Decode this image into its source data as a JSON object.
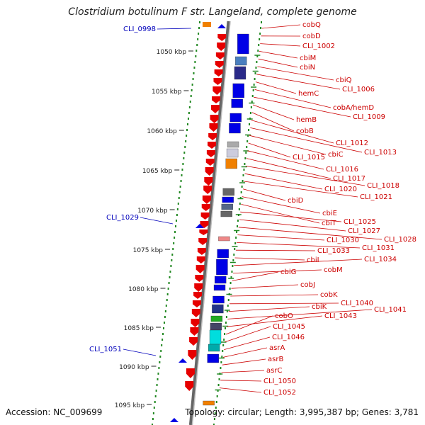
{
  "title": "Clostridium botulinum F str. Langeland, complete genome",
  "footer": {
    "accession": "Accession: NC_009699",
    "info": "Topology: circular; Length: 3,995,387 bp; Genes: 3,781"
  },
  "colors": {
    "forward_cds": "#e60000",
    "reverse_cds": "#0000e6",
    "backbone": "#888888",
    "ticks": "#228822",
    "label_forward": "#cc0000",
    "label_reverse": "#0000bb"
  },
  "ruler": [
    "1050 kbp",
    "1055 kbp",
    "1060 kbp",
    "1065 kbp",
    "1070 kbp",
    "1075 kbp",
    "1080 kbp",
    "1085 kbp",
    "1090 kbp",
    "1095 kbp"
  ],
  "left_labels": [
    "CLI_0998",
    "CLI_1029",
    "CLI_1051"
  ],
  "right_labels": [
    "cobQ",
    "cobD",
    "CLI_1002",
    "cbiM",
    "cbiN",
    "cbiQ",
    "CLI_1006",
    "hemC",
    "cobA/hemD",
    "CLI_1009",
    "hemB",
    "cobB",
    "CLI_1012",
    "CLI_1013",
    "cbiC",
    "CLI_1015",
    "CLI_1016",
    "CLI_1017",
    "CLI_1018",
    "CLI_1020",
    "CLI_1021",
    "cbiD",
    "cbiE",
    "cbiT",
    "CLI_1025",
    "CLI_1027",
    "CLI_1028",
    "CLI_1030",
    "CLI_1031",
    "CLI_1033",
    "cbiI",
    "CLI_1034",
    "cobM",
    "cbiG",
    "cobJ",
    "cobK",
    "CLI_1040",
    "cbiK",
    "CLI_1041",
    "CLI_1043",
    "cobO",
    "CLI_1045",
    "CLI_1046",
    "asrA",
    "asrB",
    "asrC",
    "CLI_1050",
    "CLI_1052"
  ]
}
